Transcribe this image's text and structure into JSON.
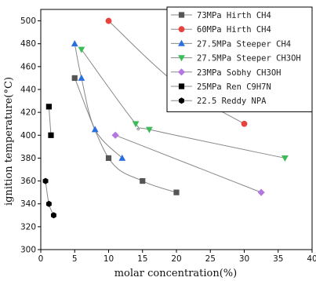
{
  "chart_data": {
    "type": "scatter",
    "xlabel": "molar concentration(%)",
    "ylabel": "ignition temperature(°C)",
    "xlim": [
      0,
      40
    ],
    "ylim": [
      300,
      510
    ],
    "x_ticks": [
      0,
      5,
      10,
      15,
      20,
      25,
      30,
      35,
      40
    ],
    "y_ticks": [
      300,
      320,
      340,
      360,
      380,
      400,
      420,
      440,
      460,
      480,
      500
    ],
    "legend_position": "top-right",
    "series": [
      {
        "name": "73MPa Hirth CH4",
        "color": "#555555",
        "marker": "square",
        "line": true,
        "x": [
          5,
          10,
          15,
          20
        ],
        "y": [
          450,
          380,
          360,
          350
        ]
      },
      {
        "name": "60MPa Hirth CH4",
        "color": "#e8423c",
        "marker": "circle",
        "line": true,
        "x": [
          10,
          20,
          30
        ],
        "y": [
          500,
          445,
          410
        ]
      },
      {
        "name": "27.5MPa Steeper CH4",
        "color": "#2b6fde",
        "marker": "triangle-up",
        "line": true,
        "x": [
          5,
          6,
          8,
          12
        ],
        "y": [
          480,
          450,
          405,
          380
        ]
      },
      {
        "name": "27.5MPa Steeper CH3OH",
        "color": "#3dbb58",
        "marker": "triangle-down",
        "line": true,
        "x": [
          6,
          14,
          16,
          36
        ],
        "y": [
          475,
          410,
          405,
          380
        ]
      },
      {
        "name": "23MPa Sobhy CH3OH",
        "color": "#b477e0",
        "marker": "diamond",
        "line": true,
        "x": [
          11,
          32.5
        ],
        "y": [
          400,
          350
        ]
      },
      {
        "name": "25MPa Ren C9H7N",
        "color": "#000000",
        "marker": "square",
        "line": true,
        "x": [
          1.2,
          1.5
        ],
        "y": [
          425,
          400
        ]
      },
      {
        "name": "22.5 Reddy NPA",
        "color": "#000000",
        "marker": "hexagon",
        "line": true,
        "x": [
          0.7,
          1.2,
          1.9
        ],
        "y": [
          360,
          340,
          330
        ]
      }
    ]
  }
}
